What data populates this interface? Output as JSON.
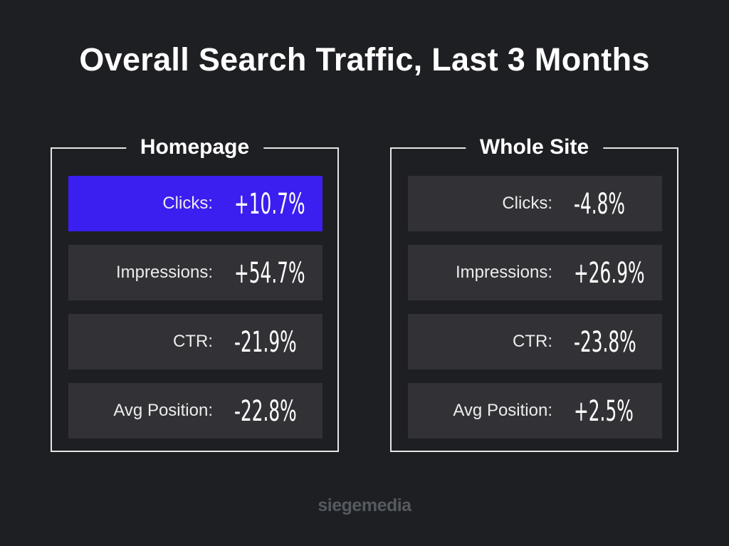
{
  "title": "Overall Search Traffic, Last 3 Months",
  "panels": [
    {
      "title": "Homepage",
      "rows": [
        {
          "label": "Clicks:",
          "value": "+10.7%",
          "highlighted": true
        },
        {
          "label": "Impressions:",
          "value": "+54.7%",
          "highlighted": false
        },
        {
          "label": "CTR:",
          "value": "-21.9%",
          "highlighted": false
        },
        {
          "label": "Avg Position:",
          "value": "-22.8%",
          "highlighted": false
        }
      ]
    },
    {
      "title": "Whole Site",
      "rows": [
        {
          "label": "Clicks:",
          "value": "-4.8%",
          "highlighted": false
        },
        {
          "label": "Impressions:",
          "value": "+26.9%",
          "highlighted": false
        },
        {
          "label": "CTR:",
          "value": "-23.8%",
          "highlighted": false
        },
        {
          "label": "Avg Position:",
          "value": "+2.5%",
          "highlighted": false
        }
      ]
    }
  ],
  "brand": "siegemedia",
  "colors": {
    "background": "#1e1f22",
    "row": "#323236",
    "highlight": "#3b1ef0",
    "border": "#e6e6e6",
    "brand": "#555a60"
  }
}
